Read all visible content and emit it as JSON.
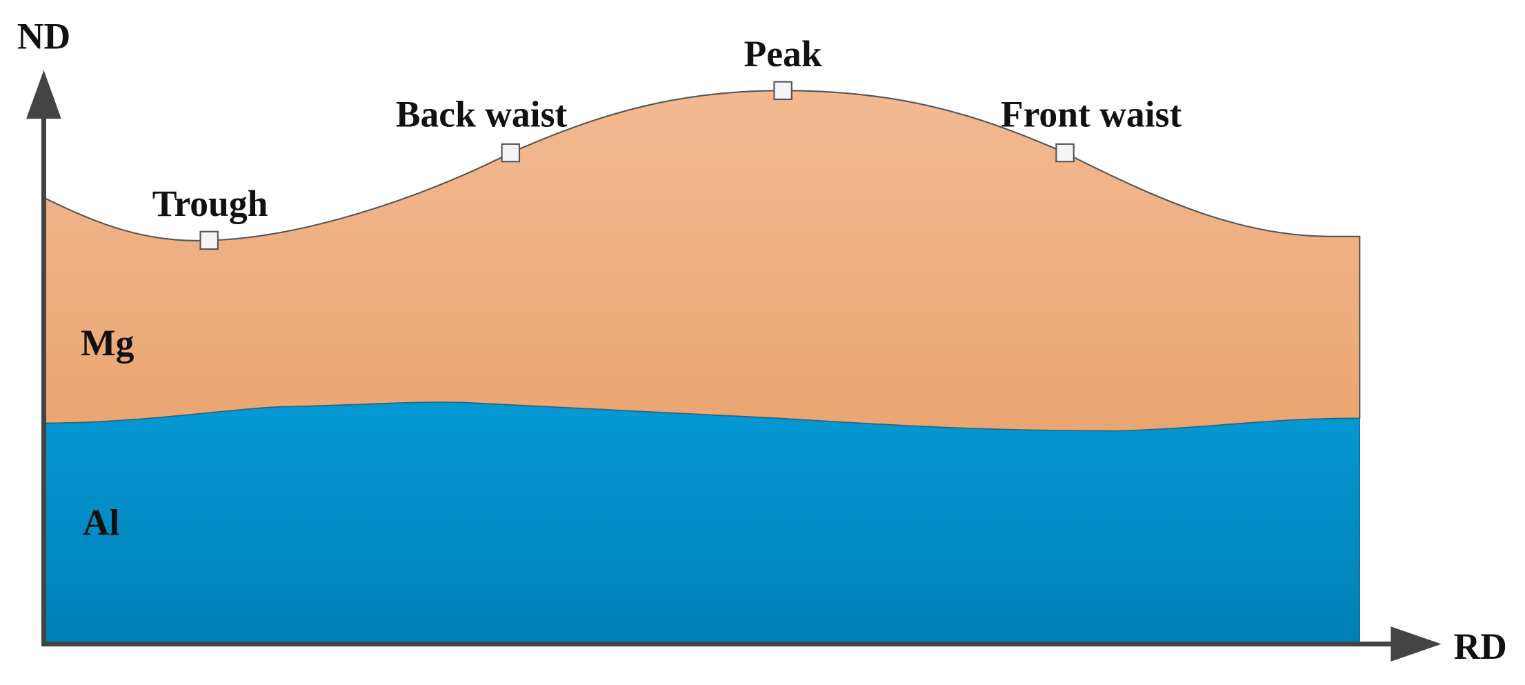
{
  "axes": {
    "y_label": "ND",
    "x_label": "RD"
  },
  "points": [
    {
      "label": "Trough"
    },
    {
      "label": "Back waist"
    },
    {
      "label": "Peak"
    },
    {
      "label": "Front waist"
    }
  ],
  "layers": [
    {
      "label": "Mg"
    },
    {
      "label": "Al"
    }
  ]
}
